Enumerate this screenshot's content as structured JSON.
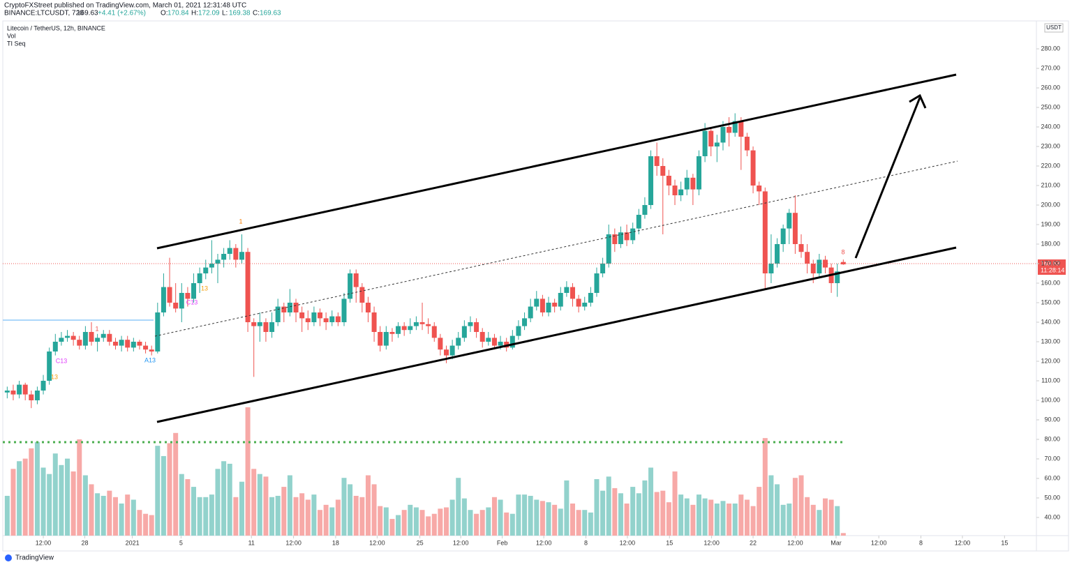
{
  "header": {
    "published": "CryptoFXStreet published on TradingView.com, March 01, 2021 12:31:48 UTC",
    "symbol": "BINANCE:LTCUSDT, 720",
    "last": "169.63",
    "change": "+4.41 (+2.67%)",
    "ohlc": [
      {
        "label": "O:",
        "value": "170.84"
      },
      {
        "label": "H:",
        "value": "172.09"
      },
      {
        "label": "L:",
        "value": "169.38"
      },
      {
        "label": "C:",
        "value": "169.63"
      }
    ]
  },
  "chart_data": {
    "type": "candlestick",
    "title": "Litecoin / TetherUS, 12h, BINANCE",
    "indicators": [
      "Vol",
      "TI Seq"
    ],
    "currency": "USDT",
    "price_label": "169.63",
    "countdown": "11:28:14",
    "brand": "TradingView",
    "up_color": "#26a69a",
    "down_color": "#ef5350",
    "volume_up_color": "#92d2cc",
    "volume_down_color": "#f7a9a7",
    "xlim": [
      -1.2,
      171.1
    ],
    "ylim": [
      30.7,
      294.3
    ],
    "xticks": [
      {
        "value": 6.0,
        "label": "12:00"
      },
      {
        "value": 12.9,
        "label": "28"
      },
      {
        "value": 20.8,
        "label": "2021"
      },
      {
        "value": 28.9,
        "label": "5"
      },
      {
        "value": 40.6,
        "label": "11"
      },
      {
        "value": 47.6,
        "label": "12:00"
      },
      {
        "value": 54.6,
        "label": "18"
      },
      {
        "value": 61.5,
        "label": "12:00"
      },
      {
        "value": 68.6,
        "label": "25"
      },
      {
        "value": 75.4,
        "label": "12:00"
      },
      {
        "value": 82.3,
        "label": "Feb"
      },
      {
        "value": 89.2,
        "label": "12:00"
      },
      {
        "value": 96.2,
        "label": "8"
      },
      {
        "value": 103.1,
        "label": "12:00"
      },
      {
        "value": 110.1,
        "label": "15"
      },
      {
        "value": 117.1,
        "label": "12:00"
      },
      {
        "value": 124.0,
        "label": "22"
      },
      {
        "value": 131.0,
        "label": "12:00"
      },
      {
        "value": 137.8,
        "label": "Mar"
      },
      {
        "value": 144.9,
        "label": "12:00"
      },
      {
        "value": 151.9,
        "label": "8"
      },
      {
        "value": 158.8,
        "label": "12:00"
      },
      {
        "value": 165.8,
        "label": "15"
      }
    ],
    "yticks": [
      {
        "value": 40,
        "label": "40.00"
      },
      {
        "value": 50,
        "label": "50.00"
      },
      {
        "value": 60,
        "label": "60.00"
      },
      {
        "value": 70,
        "label": "70.00"
      },
      {
        "value": 80,
        "label": "80.00"
      },
      {
        "value": 90,
        "label": "90.00"
      },
      {
        "value": 100,
        "label": "100.00"
      },
      {
        "value": 110,
        "label": "110.00"
      },
      {
        "value": 120,
        "label": "120.00"
      },
      {
        "value": 130,
        "label": "130.00"
      },
      {
        "value": 140,
        "label": "140.00"
      },
      {
        "value": 150,
        "label": "150.00"
      },
      {
        "value": 160,
        "label": "160.00"
      },
      {
        "value": 170,
        "label": "170.00"
      },
      {
        "value": 180,
        "label": "180.00"
      },
      {
        "value": 190,
        "label": "190.00"
      },
      {
        "value": 200,
        "label": "200.00"
      },
      {
        "value": 210,
        "label": "210.00"
      },
      {
        "value": 220,
        "label": "220.00"
      },
      {
        "value": 230,
        "label": "230.00"
      },
      {
        "value": 240,
        "label": "240.00"
      },
      {
        "value": 250,
        "label": "250.00"
      },
      {
        "value": 260,
        "label": "260.00"
      },
      {
        "value": 270,
        "label": "270.00"
      },
      {
        "value": 280,
        "label": "280.00"
      }
    ],
    "open": [
      104,
      105,
      103,
      108,
      103,
      100,
      105,
      110,
      125,
      130,
      132,
      133,
      131,
      128,
      135,
      130,
      132,
      134,
      130,
      128,
      131,
      127,
      130,
      128,
      126,
      125,
      145,
      158,
      150,
      147,
      155,
      152,
      160,
      165,
      168,
      170,
      172,
      175,
      178,
      172,
      176,
      140,
      138,
      140,
      135,
      140,
      148,
      145,
      150,
      145,
      142,
      140,
      145,
      142,
      140,
      143,
      140,
      152,
      165,
      158,
      150,
      145,
      135,
      128,
      135,
      134,
      138,
      136,
      138,
      140,
      139,
      138,
      132,
      126,
      123,
      128,
      132,
      138,
      140,
      135,
      130,
      132,
      128,
      130,
      127,
      133,
      138,
      142,
      148,
      152,
      145,
      150,
      148,
      155,
      158,
      152,
      148,
      150,
      155,
      165,
      170,
      185,
      180,
      186,
      182,
      188,
      195,
      200,
      225,
      220,
      215,
      210,
      205,
      208,
      214,
      208,
      225,
      238,
      230,
      232,
      240,
      237,
      243,
      235,
      228,
      210,
      207,
      165,
      170,
      180,
      188,
      196,
      180,
      176,
      170,
      165,
      172,
      168,
      160,
      170.84
    ],
    "high": [
      107,
      108,
      110,
      109,
      105,
      107,
      113,
      127,
      134,
      135,
      136,
      135,
      133,
      138,
      140,
      134,
      136,
      136,
      132,
      133,
      133,
      132,
      131,
      130,
      128,
      150,
      165,
      173,
      160,
      160,
      158,
      165,
      168,
      172,
      182,
      175,
      178,
      182,
      180,
      185,
      178,
      142,
      145,
      142,
      145,
      152,
      150,
      157,
      152,
      148,
      146,
      148,
      147,
      145,
      146,
      145,
      155,
      167,
      167,
      160,
      153,
      148,
      138,
      138,
      137,
      140,
      140,
      142,
      143,
      150,
      142,
      140,
      134,
      128,
      131,
      135,
      141,
      143,
      142,
      137,
      135,
      134,
      133,
      132,
      136,
      141,
      145,
      152,
      156,
      154,
      153,
      152,
      158,
      161,
      160,
      154,
      153,
      158,
      168,
      173,
      190,
      188,
      189,
      190,
      191,
      198,
      204,
      228,
      232,
      224,
      218,
      213,
      212,
      218,
      216,
      228,
      242,
      240,
      236,
      243,
      245,
      247,
      245,
      237,
      230,
      212,
      209,
      185,
      183,
      190,
      198,
      205,
      185,
      180,
      172,
      175,
      174,
      170,
      170,
      172.09
    ],
    "low": [
      101,
      100,
      101,
      100,
      96,
      98,
      103,
      108,
      123,
      128,
      130,
      128,
      126,
      126,
      128,
      125,
      130,
      128,
      126,
      125,
      125,
      125,
      126,
      124,
      123,
      124,
      143,
      148,
      145,
      140,
      148,
      150,
      155,
      162,
      165,
      160,
      168,
      172,
      168,
      170,
      135,
      112,
      130,
      130,
      132,
      138,
      140,
      143,
      140,
      135,
      136,
      138,
      138,
      136,
      138,
      138,
      138,
      150,
      150,
      145,
      140,
      130,
      125,
      126,
      130,
      132,
      133,
      134,
      136,
      136,
      134,
      130,
      123,
      119,
      121,
      126,
      130,
      135,
      132,
      127,
      128,
      126,
      126,
      125,
      126,
      131,
      136,
      140,
      146,
      143,
      143,
      145,
      146,
      153,
      148,
      145,
      146,
      148,
      153,
      163,
      168,
      176,
      178,
      179,
      180,
      185,
      193,
      198,
      215,
      185,
      205,
      200,
      202,
      205,
      200,
      205,
      222,
      225,
      222,
      228,
      230,
      235,
      218,
      225,
      206,
      200,
      157,
      160,
      168,
      176,
      180,
      175,
      173,
      165,
      160,
      163,
      165,
      155,
      153,
      169.38
    ],
    "close": [
      105,
      103,
      108,
      103,
      100,
      105,
      110,
      125,
      130,
      132,
      133,
      131,
      128,
      135,
      130,
      132,
      134,
      130,
      128,
      131,
      127,
      130,
      128,
      126,
      125,
      145,
      158,
      150,
      147,
      155,
      152,
      160,
      165,
      168,
      170,
      172,
      175,
      178,
      172,
      176,
      140,
      138,
      140,
      135,
      140,
      148,
      145,
      150,
      145,
      142,
      140,
      145,
      142,
      140,
      143,
      140,
      152,
      165,
      158,
      150,
      145,
      135,
      128,
      135,
      134,
      138,
      136,
      138,
      140,
      139,
      138,
      132,
      126,
      123,
      128,
      132,
      138,
      140,
      135,
      130,
      132,
      128,
      130,
      127,
      133,
      138,
      142,
      148,
      152,
      145,
      150,
      148,
      155,
      158,
      152,
      148,
      150,
      155,
      165,
      170,
      185,
      180,
      186,
      182,
      188,
      195,
      200,
      225,
      220,
      215,
      210,
      205,
      208,
      214,
      208,
      225,
      238,
      230,
      232,
      240,
      237,
      243,
      235,
      228,
      210,
      207,
      165,
      170,
      180,
      188,
      196,
      180,
      176,
      170,
      165,
      172,
      168,
      160,
      166,
      169.63
    ],
    "volume": [
      31,
      52,
      58,
      60,
      68,
      73,
      53,
      48,
      64,
      55,
      60,
      50,
      75,
      47,
      40,
      33,
      31,
      35,
      30,
      25,
      32,
      28,
      20,
      17,
      16,
      70,
      62,
      72,
      80,
      48,
      44,
      38,
      30,
      30,
      32,
      52,
      58,
      56,
      30,
      42,
      100,
      52,
      48,
      46,
      30,
      31,
      38,
      47,
      30,
      33,
      28,
      32,
      20,
      24,
      22,
      28,
      45,
      40,
      31,
      30,
      47,
      40,
      23,
      22,
      13,
      16,
      20,
      24,
      22,
      20,
      15,
      17,
      21,
      22,
      28,
      45,
      29,
      20,
      17,
      20,
      22,
      30,
      28,
      18,
      17,
      32,
      32,
      31,
      28,
      27,
      26,
      24,
      21,
      43,
      25,
      20,
      20,
      18,
      44,
      35,
      46,
      37,
      33,
      25,
      38,
      33,
      43,
      53,
      34,
      35,
      26,
      50,
      32,
      29,
      24,
      32,
      29,
      28,
      25,
      27,
      25,
      25,
      32,
      28,
      23,
      38,
      76,
      47,
      40,
      24,
      25,
      45,
      47,
      30,
      24,
      20,
      29,
      28,
      23,
      2
    ],
    "sequential_labels": [
      {
        "text": "C13",
        "color": "#e040fb"
      },
      {
        "text": "13",
        "color": "#f59e0b"
      },
      {
        "text": "1",
        "color": "#ef5350"
      },
      {
        "text": "A13",
        "color": "#2196f3"
      },
      {
        "text": "C13",
        "color": "#e040fb"
      },
      {
        "text": "13",
        "color": "#f59e0b"
      },
      {
        "text": "1",
        "color": "#f57c00"
      },
      {
        "text": "8",
        "color": "#ef5350"
      }
    ]
  }
}
